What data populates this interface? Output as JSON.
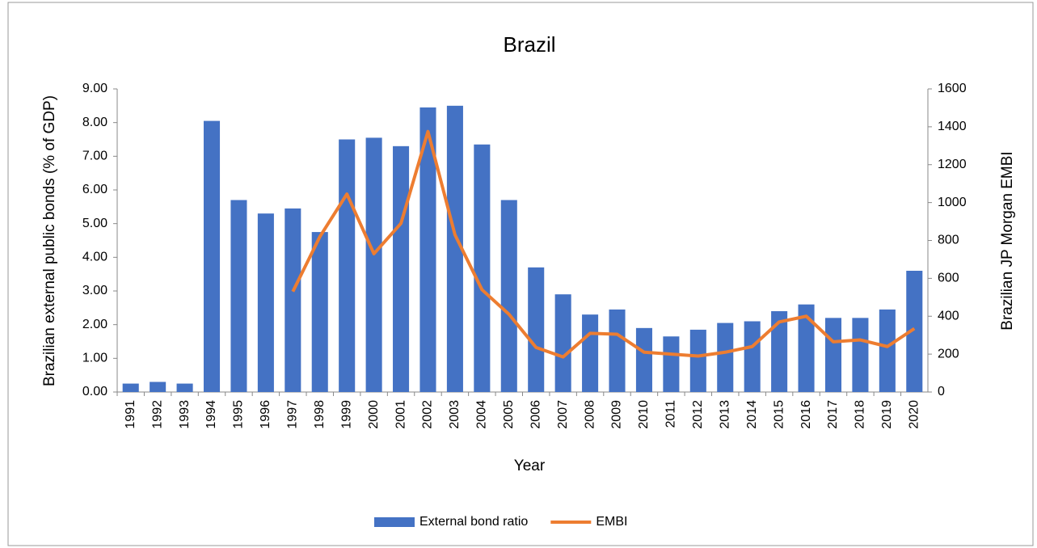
{
  "chart_data": {
    "type": "bar-line",
    "title": "Brazil",
    "x_label": "Year",
    "y_label": "Brazilian external public bonds (% of GDP)",
    "y2_label": "Brazilian JP Morgan EMBI",
    "categories": [
      "1991",
      "1992",
      "1993",
      "1994",
      "1995",
      "1996",
      "1997",
      "1998",
      "1999",
      "2000",
      "2001",
      "2002",
      "2003",
      "2004",
      "2005",
      "2006",
      "2007",
      "2008",
      "2009",
      "2010",
      "2011",
      "2012",
      "2013",
      "2014",
      "2015",
      "2016",
      "2017",
      "2018",
      "2019",
      "2020"
    ],
    "series": [
      {
        "name": "External bond ratio",
        "type": "bar",
        "color": "#4472c4",
        "values": [
          0.25,
          0.3,
          0.25,
          8.05,
          5.7,
          5.3,
          5.45,
          4.75,
          7.5,
          7.55,
          7.3,
          8.45,
          8.5,
          7.35,
          5.7,
          3.7,
          2.9,
          2.3,
          2.45,
          1.9,
          1.65,
          1.85,
          2.05,
          2.1,
          2.4,
          2.6,
          2.2,
          2.2,
          2.45,
          3.6
        ]
      },
      {
        "name": "EMBI",
        "type": "line",
        "axis": "y2",
        "color": "#ed7d31",
        "values": [
          null,
          null,
          null,
          null,
          null,
          null,
          530,
          820,
          1045,
          730,
          890,
          1375,
          830,
          540,
          410,
          235,
          185,
          310,
          305,
          210,
          200,
          190,
          210,
          240,
          370,
          400,
          265,
          275,
          240,
          335
        ]
      }
    ],
    "ylim": [
      0,
      9
    ],
    "yticks": [
      {
        "value": 0,
        "label": "0.00"
      },
      {
        "value": 1,
        "label": "1.00"
      },
      {
        "value": 2,
        "label": "2.00"
      },
      {
        "value": 3,
        "label": "3.00"
      },
      {
        "value": 4,
        "label": "4.00"
      },
      {
        "value": 5,
        "label": "5.00"
      },
      {
        "value": 6,
        "label": "6.00"
      },
      {
        "value": 7,
        "label": "7.00"
      },
      {
        "value": 8,
        "label": "8.00"
      },
      {
        "value": 9,
        "label": "9.00"
      }
    ],
    "y2lim": [
      0,
      1600
    ],
    "y2ticks": [
      0,
      200,
      400,
      600,
      800,
      1000,
      1200,
      1400,
      1600
    ],
    "legend": "bottom",
    "grid": false
  }
}
